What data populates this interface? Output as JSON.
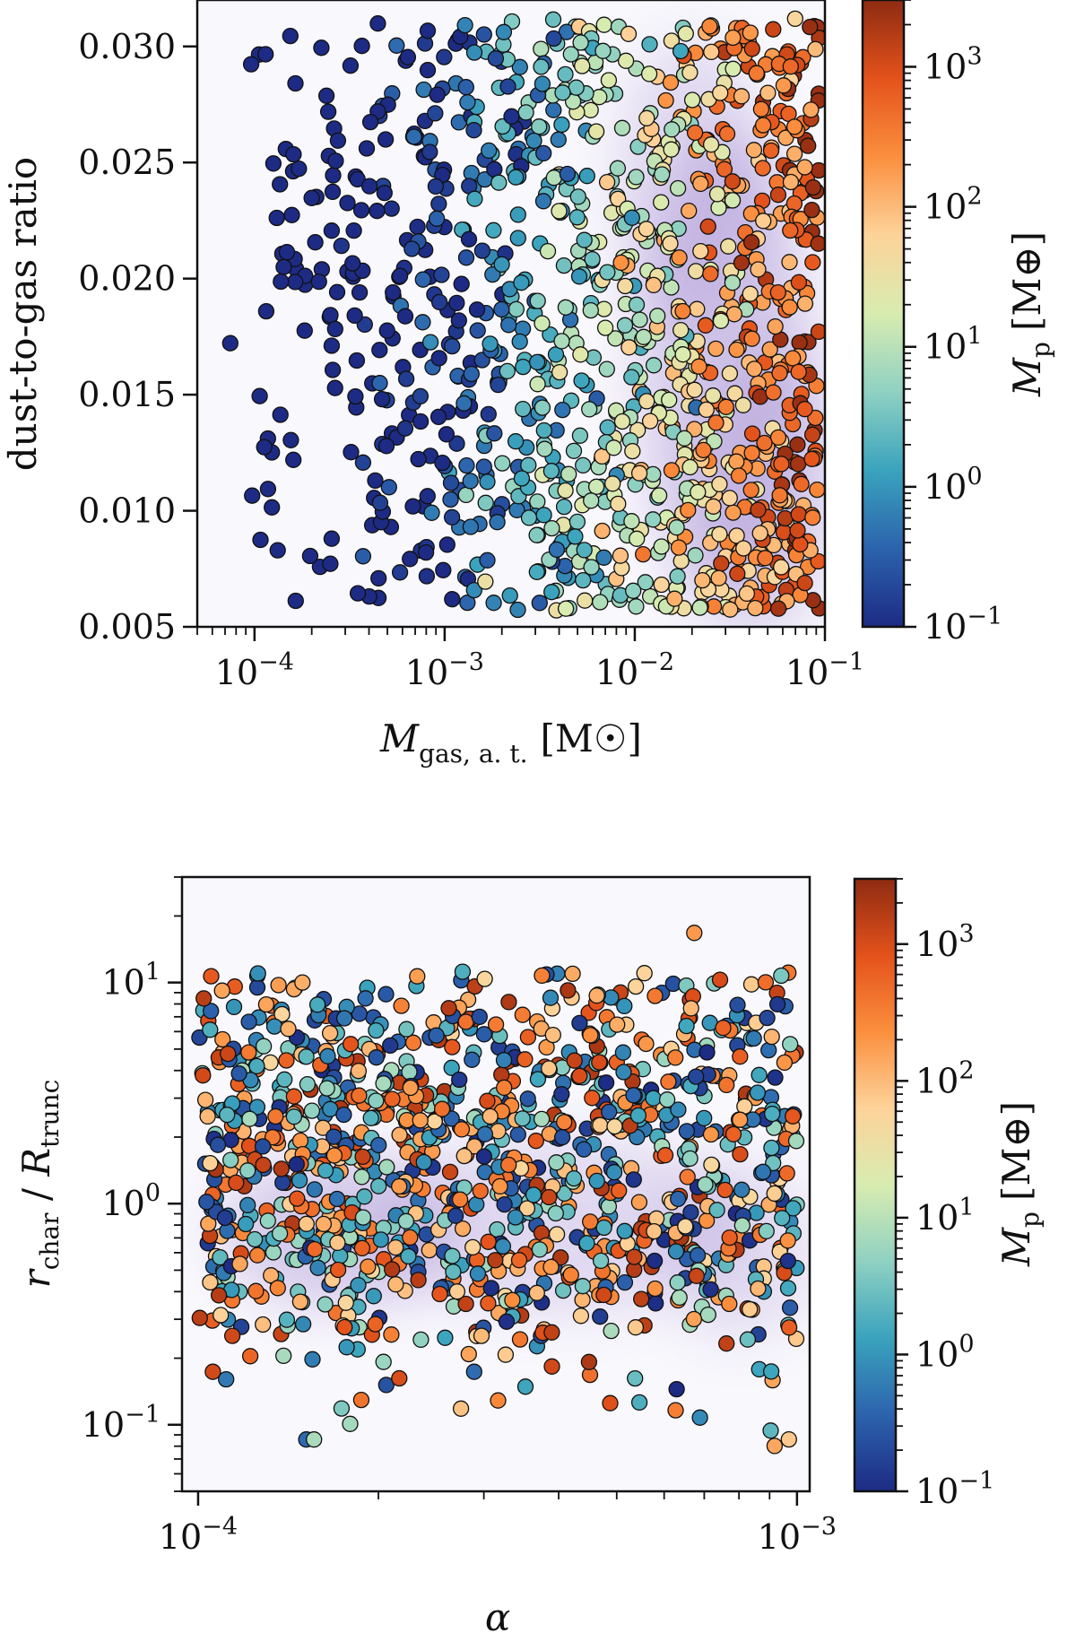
{
  "colormap": {
    "stops": [
      "#1d2b84",
      "#2c63ad",
      "#3aa3bd",
      "#8fd1c2",
      "#d8ecb0",
      "#fdd39a",
      "#fb8f3e",
      "#e4521b",
      "#8e2b12"
    ],
    "density_color": "#8a6cc4",
    "point_edge": "#111111"
  },
  "chart_data": [
    {
      "type": "scatter",
      "name": "top-panel",
      "xlabel": "M_gas,a.t. [M☉]",
      "xlabel_main": "M",
      "xlabel_sub": "gas, a. t.",
      "xlabel_unit": "[M☉]",
      "ylabel": "dust-to-gas ratio",
      "xscale": "log",
      "xlim": [
        5e-05,
        0.1
      ],
      "ylim": [
        0.005,
        0.032
      ],
      "xticks": [
        {
          "value": 0.0001,
          "base": "10",
          "exp": "−4"
        },
        {
          "value": 0.001,
          "base": "10",
          "exp": "−3"
        },
        {
          "value": 0.01,
          "base": "10",
          "exp": "−2"
        },
        {
          "value": 0.1,
          "base": "10",
          "exp": "−1"
        }
      ],
      "yticks": [
        {
          "value": 0.005,
          "label": "0.005"
        },
        {
          "value": 0.01,
          "label": "0.010"
        },
        {
          "value": 0.015,
          "label": "0.015"
        },
        {
          "value": 0.02,
          "label": "0.020"
        },
        {
          "value": 0.025,
          "label": "0.025"
        },
        {
          "value": 0.03,
          "label": "0.030"
        }
      ],
      "colorbar": {
        "label": "M_p [M⊕]",
        "label_main": "M",
        "label_sub": "p",
        "label_unit": "[M⊕]",
        "scale": "log",
        "range": [
          0.1,
          3000
        ],
        "ticks": [
          {
            "value": 0.1,
            "base": "10",
            "exp": "−1"
          },
          {
            "value": 1,
            "base": "10",
            "exp": "0"
          },
          {
            "value": 10,
            "base": "10",
            "exp": "1"
          },
          {
            "value": 100,
            "base": "10",
            "exp": "2"
          },
          {
            "value": 1000,
            "base": "10",
            "exp": "3"
          }
        ]
      },
      "density_blobs": [
        {
          "x": 0.03,
          "y": 0.016,
          "sx": 0.28,
          "sy": 0.0065,
          "w": 1.0
        },
        {
          "x": 0.05,
          "y": 0.011,
          "sx": 0.22,
          "sy": 0.004,
          "w": 0.8
        },
        {
          "x": 0.02,
          "y": 0.024,
          "sx": 0.25,
          "sy": 0.004,
          "w": 0.7
        }
      ],
      "n_points": 1150,
      "seed": 12345
    },
    {
      "type": "scatter",
      "name": "bottom-panel",
      "xlabel": "α",
      "ylabel": "r_char / R_trunc",
      "ylabel_main": "r",
      "ylabel_sub": "char",
      "ylabel_main2": "R",
      "ylabel_sub2": "trunc",
      "xscale": "log",
      "yscale": "log",
      "xlim": [
        9.4e-05,
        0.00105
      ],
      "ylim": [
        0.05,
        30
      ],
      "xticks": [
        {
          "value": 0.0001,
          "base": "10",
          "exp": "−4"
        },
        {
          "value": 0.001,
          "base": "10",
          "exp": "−3"
        }
      ],
      "yticks": [
        {
          "value": 0.1,
          "base": "10",
          "exp": "−1"
        },
        {
          "value": 1,
          "base": "10",
          "exp": "0"
        },
        {
          "value": 10,
          "base": "10",
          "exp": "1"
        }
      ],
      "colorbar": {
        "label": "M_p [M⊕]",
        "label_main": "M",
        "label_sub": "p",
        "label_unit": "[M⊕]",
        "scale": "log",
        "range": [
          0.1,
          3000
        ],
        "ticks": [
          {
            "value": 0.1,
            "base": "10",
            "exp": "−1"
          },
          {
            "value": 1,
            "base": "10",
            "exp": "0"
          },
          {
            "value": 10,
            "base": "10",
            "exp": "1"
          },
          {
            "value": 100,
            "base": "10",
            "exp": "2"
          },
          {
            "value": 1000,
            "base": "10",
            "exp": "3"
          }
        ]
      },
      "density_blobs": [
        {
          "x": 0.00017,
          "y": 0.75,
          "sx": 0.12,
          "sy": 0.22,
          "w": 1.0
        },
        {
          "x": 0.0004,
          "y": 0.8,
          "sx": 0.2,
          "sy": 0.25,
          "w": 0.7
        },
        {
          "x": 0.0008,
          "y": 0.6,
          "sx": 0.08,
          "sy": 0.25,
          "w": 0.6
        }
      ],
      "n_points": 1150,
      "seed": 67890
    }
  ]
}
